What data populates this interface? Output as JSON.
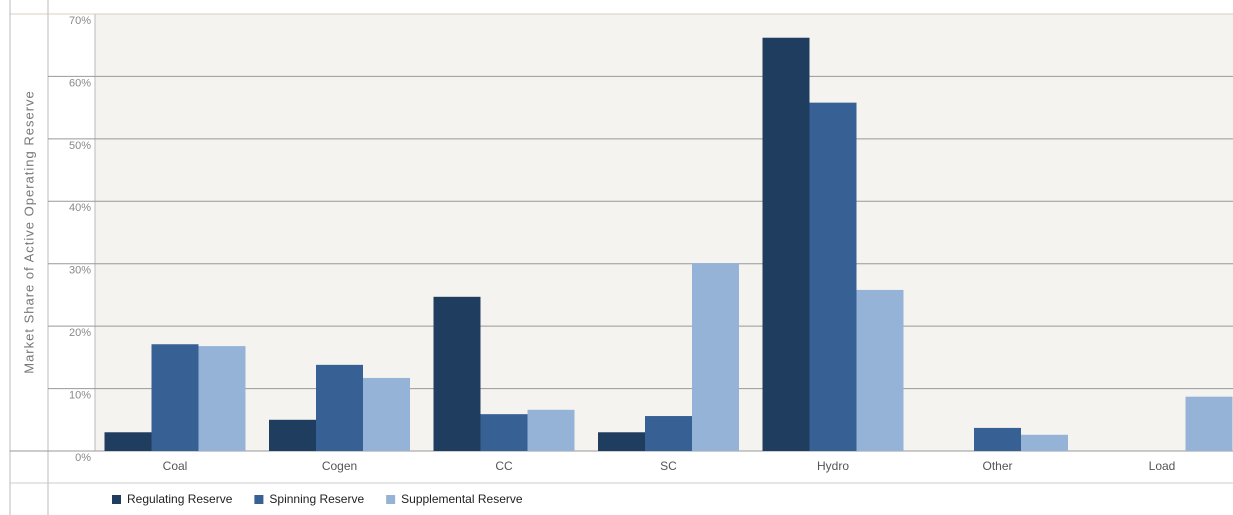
{
  "chart_data": {
    "type": "bar",
    "y_label": "Market Share of Active Operating Reserve",
    "categories": [
      "Coal",
      "Cogen",
      "CC",
      "SC",
      "Hydro",
      "Other",
      "Load"
    ],
    "series": [
      {
        "name": "Regulating Reserve",
        "color": "#1f3d5f",
        "values": [
          3,
          5,
          24.7,
          3,
          66.2,
          0,
          0
        ]
      },
      {
        "name": "Spinning Reserve",
        "color": "#376095",
        "values": [
          17.1,
          13.8,
          5.9,
          5.6,
          55.8,
          3.7,
          0
        ]
      },
      {
        "name": "Supplemental Reserve",
        "color": "#95b3d7",
        "values": [
          16.8,
          11.7,
          6.6,
          30.1,
          25.8,
          2.6,
          8.7
        ]
      }
    ],
    "ylim": [
      0,
      70
    ],
    "yticks": [
      {
        "value": 0,
        "label": "0%"
      },
      {
        "value": 10,
        "label": "10%"
      },
      {
        "value": 20,
        "label": "20%"
      },
      {
        "value": 30,
        "label": "30%"
      },
      {
        "value": 40,
        "label": "40%"
      },
      {
        "value": 50,
        "label": "50%"
      },
      {
        "value": 60,
        "label": "60%"
      },
      {
        "value": 70,
        "label": "70%"
      }
    ],
    "grid": true
  }
}
